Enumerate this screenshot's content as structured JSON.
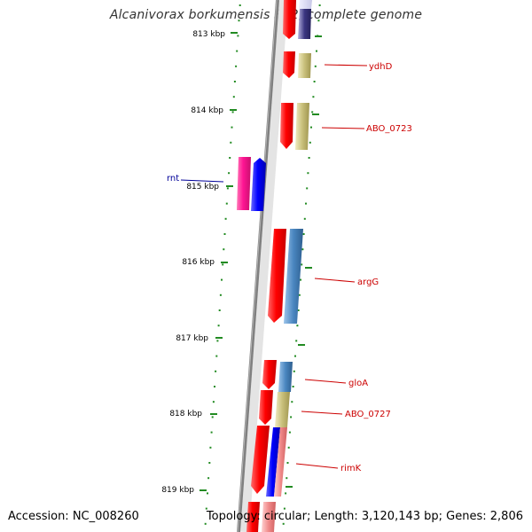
{
  "title": "Alcanivorax borkumensis SK2, complete genome",
  "footer": {
    "accession": "Accession: NC_008260",
    "summary": "Topology: circular; Length: 3,120,143 bp; Genes: 2,806"
  },
  "ticks": [
    {
      "kbp": 813,
      "label": "813 kbp"
    },
    {
      "kbp": 814,
      "label": "814 kbp"
    },
    {
      "kbp": 815,
      "label": "815 kbp"
    },
    {
      "kbp": 816,
      "label": "816 kbp"
    },
    {
      "kbp": 817,
      "label": "817 kbp"
    },
    {
      "kbp": 818,
      "label": "818 kbp"
    },
    {
      "kbp": 819,
      "label": "819 kbp"
    }
  ],
  "features": [
    {
      "label": "ydhD",
      "color": "#cc0000"
    },
    {
      "label": "ABO_0723",
      "color": "#cc0000"
    },
    {
      "label": "rnt",
      "color": "#000099"
    },
    {
      "label": "argG",
      "color": "#cc0000"
    },
    {
      "label": "gloA",
      "color": "#cc0000"
    },
    {
      "label": "ABO_0727",
      "color": "#cc0000"
    },
    {
      "label": "rimK",
      "color": "#cc0000"
    }
  ],
  "colors": {
    "cds": "#ff0000",
    "gene_forward": "#0000ff",
    "gene_reverse": "#ff1493",
    "ortholog_tan": "#c8bf7a",
    "ortholog_steel": "#4a86c0",
    "ortholog_navy": "#3a3580",
    "backbone": "#808080",
    "tick": "#228b22"
  }
}
